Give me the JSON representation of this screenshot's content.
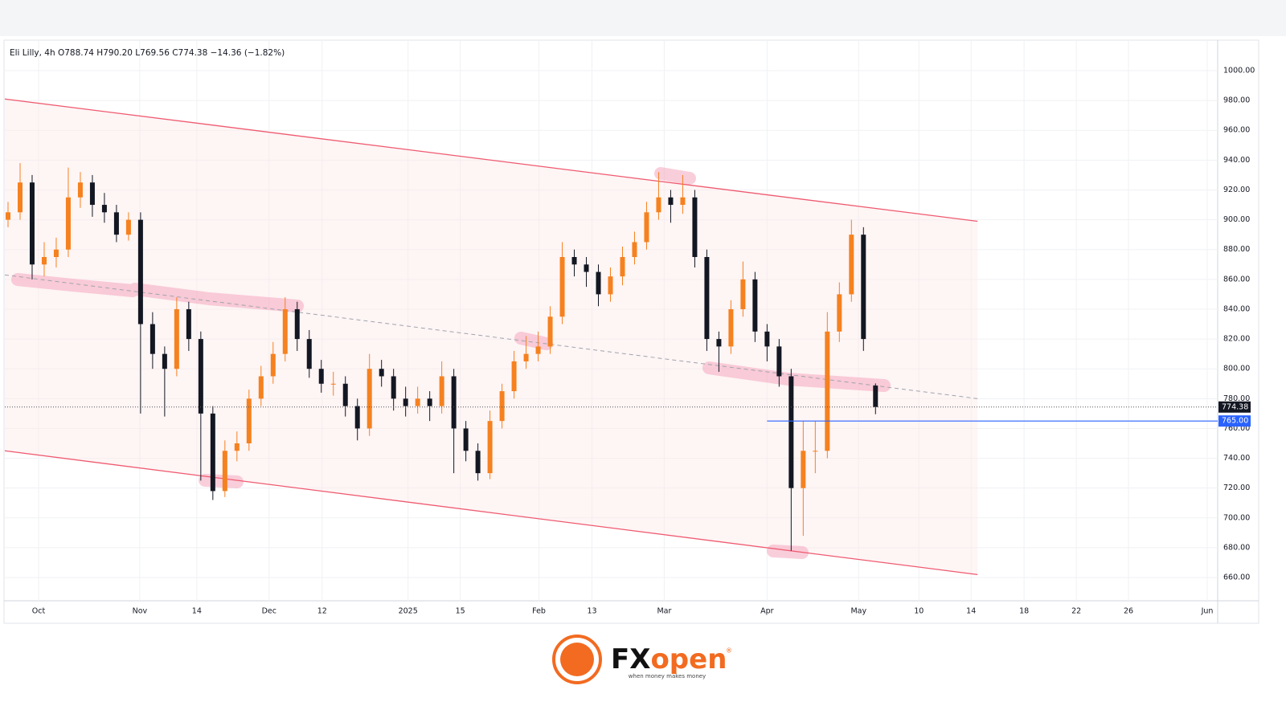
{
  "chart_data": {
    "type": "candlestick",
    "title": "Eli Lilly, 4h  O788.74  H790.20  L769.56  C774.38  −14.36 (−1.82%)",
    "up_color": "#f5811f",
    "down_color": "#131722",
    "ylim": [
      644.4,
      1019.4
    ],
    "yticks": [
      {
        "value": 660,
        "label": "660.00"
      },
      {
        "value": 680,
        "label": "680.00"
      },
      {
        "value": 700,
        "label": "700.00"
      },
      {
        "value": 720,
        "label": "720.00"
      },
      {
        "value": 740,
        "label": "740.00"
      },
      {
        "value": 760,
        "label": "760.00"
      },
      {
        "value": 780,
        "label": "780.00"
      },
      {
        "value": 800,
        "label": "800.00"
      },
      {
        "value": 820,
        "label": "820.00"
      },
      {
        "value": 840,
        "label": "840.00"
      },
      {
        "value": 860,
        "label": "860.00"
      },
      {
        "value": 880,
        "label": "880.00"
      },
      {
        "value": 900,
        "label": "900.00"
      },
      {
        "value": 920,
        "label": "920.00"
      },
      {
        "value": 940,
        "label": "940.00"
      },
      {
        "value": 960,
        "label": "960.00"
      },
      {
        "value": 980,
        "label": "980.00"
      },
      {
        "value": 1000,
        "label": "1000.00"
      }
    ],
    "xlim": [
      0,
      302
    ],
    "xticks": [
      {
        "value": 8.4,
        "label": "Oct"
      },
      {
        "value": 33.6,
        "label": "Nov"
      },
      {
        "value": 47.8,
        "label": "14"
      },
      {
        "value": 65.8,
        "label": "Dec"
      },
      {
        "value": 79,
        "label": "12"
      },
      {
        "value": 100.4,
        "label": "2025"
      },
      {
        "value": 113.4,
        "label": "15"
      },
      {
        "value": 133,
        "label": "Feb"
      },
      {
        "value": 146.2,
        "label": "13"
      },
      {
        "value": 164.2,
        "label": "Mar"
      },
      {
        "value": 189.8,
        "label": "Apr"
      },
      {
        "value": 212.6,
        "label": "May"
      },
      {
        "value": 227.6,
        "label": "10"
      },
      {
        "value": 240.6,
        "label": "14"
      },
      {
        "value": 253.8,
        "label": "18"
      },
      {
        "value": 266.8,
        "label": "22"
      },
      {
        "value": 279.8,
        "label": "26"
      },
      {
        "value": 299.4,
        "label": "Jun"
      }
    ],
    "grid": true,
    "x": [
      0.8,
      3.8,
      6.8,
      9.8,
      12.8,
      15.8,
      18.8,
      21.8,
      24.8,
      27.8,
      30.8,
      33.8,
      36.8,
      39.8,
      42.8,
      45.8,
      48.8,
      51.8,
      54.8,
      57.8,
      60.8,
      63.8,
      66.8,
      69.8,
      72.8,
      75.8,
      78.8,
      81.8,
      84.8,
      87.8,
      90.8,
      93.8,
      96.8,
      99.8,
      102.8,
      105.8,
      108.8,
      111.8,
      114.8,
      117.8,
      120.8,
      123.8,
      126.8,
      129.8,
      132.8,
      135.8,
      138.8,
      141.8,
      144.8,
      147.8,
      150.8,
      153.8,
      156.8,
      159.8,
      162.8,
      165.8,
      168.8,
      171.8,
      174.8,
      177.8,
      180.8,
      183.8,
      186.8,
      189.8,
      192.8,
      195.8,
      198.8,
      201.8,
      204.8,
      207.8,
      210.8,
      213.8,
      216.8
    ],
    "open": [
      900,
      905,
      925,
      870,
      875,
      880,
      915,
      925,
      910,
      905,
      890,
      900,
      830,
      810,
      800,
      840,
      820,
      770,
      718,
      745,
      750,
      780,
      795,
      810,
      840,
      820,
      800,
      790,
      790,
      775,
      760,
      800,
      795,
      780,
      775,
      780,
      775,
      795,
      760,
      745,
      730,
      765,
      785,
      805,
      810,
      815,
      835,
      875,
      870,
      865,
      850,
      862,
      875,
      885,
      905,
      915,
      910,
      915,
      875,
      820,
      815,
      840,
      860,
      825,
      815,
      795,
      720,
      745,
      745,
      825,
      850,
      890,
      788.74
    ],
    "high": [
      912,
      938,
      930,
      885,
      888,
      935,
      932,
      930,
      918,
      910,
      905,
      905,
      838,
      815,
      848,
      845,
      825,
      775,
      752,
      758,
      786,
      802,
      818,
      848,
      845,
      826,
      806,
      798,
      795,
      780,
      810,
      806,
      800,
      788,
      788,
      785,
      805,
      800,
      765,
      750,
      772,
      790,
      812,
      822,
      825,
      842,
      885,
      880,
      875,
      870,
      868,
      882,
      892,
      912,
      932,
      920,
      930,
      920,
      880,
      825,
      846,
      872,
      865,
      830,
      820,
      800,
      765,
      765,
      838,
      858,
      900,
      895,
      790.2
    ],
    "low": [
      895,
      900,
      860,
      862,
      868,
      875,
      908,
      902,
      898,
      885,
      886,
      770,
      800,
      768,
      795,
      812,
      725,
      712,
      714,
      738,
      745,
      775,
      790,
      805,
      812,
      794,
      784,
      782,
      768,
      752,
      755,
      788,
      772,
      768,
      770,
      765,
      770,
      730,
      738,
      725,
      726,
      760,
      780,
      800,
      805,
      810,
      830,
      862,
      855,
      842,
      845,
      856,
      870,
      880,
      900,
      898,
      904,
      868,
      812,
      798,
      810,
      835,
      818,
      805,
      788,
      678,
      688,
      730,
      740,
      818,
      845,
      812,
      769.56
    ],
    "close": [
      905,
      925,
      870,
      875,
      880,
      915,
      925,
      910,
      905,
      890,
      900,
      830,
      810,
      800,
      840,
      820,
      770,
      718,
      745,
      750,
      780,
      795,
      810,
      840,
      820,
      800,
      790,
      790,
      775,
      760,
      800,
      795,
      780,
      775,
      780,
      775,
      795,
      760,
      745,
      730,
      765,
      785,
      805,
      810,
      815,
      835,
      875,
      870,
      865,
      850,
      862,
      875,
      885,
      905,
      915,
      910,
      915,
      875,
      820,
      815,
      840,
      860,
      825,
      815,
      795,
      720,
      745,
      745,
      825,
      850,
      890,
      820,
      774.38
    ],
    "trend_lines": [
      {
        "x": [
          0,
          242.2
        ],
        "values": [
          981,
          899
        ],
        "color": "#ef5a6f",
        "style": "solid"
      },
      {
        "x": [
          0,
          242.2
        ],
        "values": [
          863,
          780
        ],
        "color": "#a0a4ad",
        "style": "dashed"
      },
      {
        "x": [
          0,
          242.2
        ],
        "values": [
          745,
          662
        ],
        "color": "#ef5a6f",
        "style": "solid"
      }
    ],
    "last_price": {
      "value": 774.38,
      "label": "774.38",
      "color": "#131722"
    },
    "level": {
      "value": 765,
      "label": "765.00",
      "x_start": 189.8,
      "color": "#2962ff"
    }
  },
  "logo": {
    "brand_parts": [
      "FX",
      "open"
    ],
    "mark": "®",
    "tagline": "when money makes money"
  }
}
